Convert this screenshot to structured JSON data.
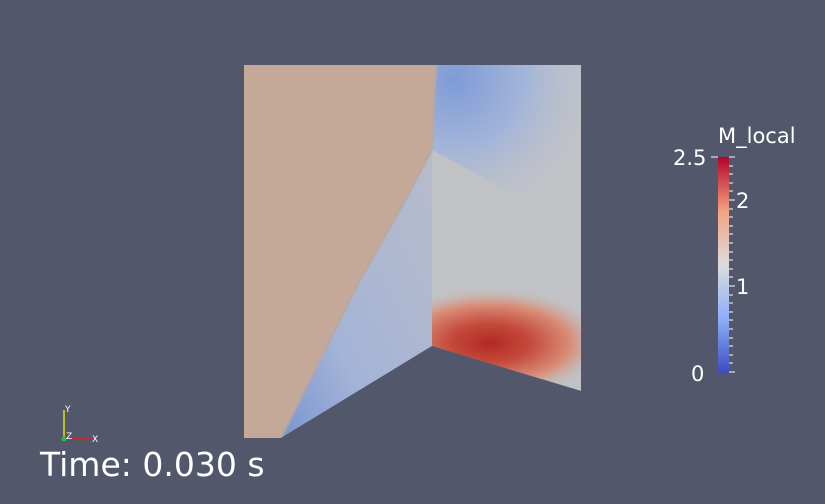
{
  "colorbar": {
    "title": "M_local",
    "ticks": {
      "max": "2.5",
      "two": "2",
      "one": "1",
      "zero": "0"
    },
    "colors": {
      "low": "#3b4cc0",
      "mid": "#dddddd",
      "high": "#b40426"
    }
  },
  "axes_triad": {
    "x": "X",
    "y": "Y",
    "z": "Z"
  },
  "time_annotation": "Time: 0.030 s",
  "colors": {
    "background": "#52576b"
  }
}
